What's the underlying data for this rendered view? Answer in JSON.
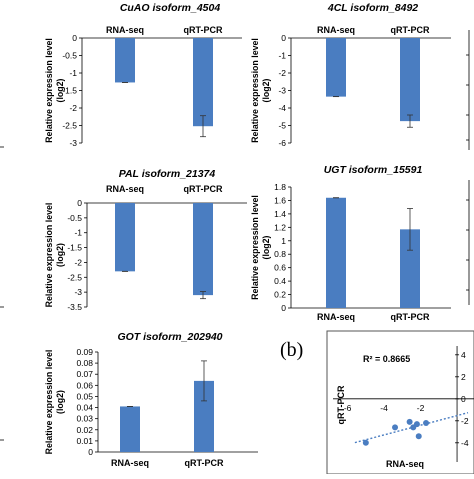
{
  "chart_data": [
    {
      "type": "bar",
      "title": "",
      "xlabel": "",
      "ylabel": "",
      "categories": [],
      "values": [],
      "note": "partially visible panel at left edge, row 1"
    },
    {
      "type": "bar",
      "title": "CuAO isoform_4504",
      "categories": [
        "RNA-seq",
        "qRT-PCR"
      ],
      "values": [
        -1.27,
        -2.52
      ],
      "errors": [
        0.0,
        0.3
      ],
      "ylabel_line1": "Relative expression level",
      "ylabel_line2": "(log2)",
      "ylim": [
        -3,
        0
      ],
      "yticks": [
        0,
        -0.5,
        -1,
        -1.5,
        -2,
        -2.5,
        -3
      ],
      "ytick_labels": [
        "0",
        "-0.5",
        "-1",
        "-1.5",
        "-2",
        "-2.5",
        "-3"
      ],
      "category_position": "top"
    },
    {
      "type": "bar",
      "title": "4CL isoform_8492",
      "categories": [
        "RNA-seq",
        "qRT-PCR"
      ],
      "values": [
        -3.35,
        -4.75
      ],
      "errors": [
        0.0,
        0.35
      ],
      "ylabel_line1": "Relative expression level",
      "ylabel_line2": "(log2)",
      "ylim": [
        -6,
        0
      ],
      "yticks": [
        0,
        -1,
        -2,
        -3,
        -4,
        -5,
        -6
      ],
      "ytick_labels": [
        "0",
        "-1",
        "-2",
        "-3",
        "-4",
        "-5",
        "-6"
      ],
      "category_position": "top"
    },
    {
      "type": "bar",
      "title": "PAL isoform_21374",
      "categories": [
        "RNA-seq",
        "qRT-PCR"
      ],
      "values": [
        -2.3,
        -3.1
      ],
      "errors": [
        0.0,
        0.12
      ],
      "ylabel_line1": "Relative expression level",
      "ylabel_line2": "(log2)",
      "ylim": [
        -3.5,
        0
      ],
      "yticks": [
        0,
        -0.5,
        -1,
        -1.5,
        -2,
        -2.5,
        -3,
        -3.5
      ],
      "ytick_labels": [
        "0",
        "-0.5",
        "-1",
        "-1.5",
        "-2",
        "-2.5",
        "-3",
        "-3.5"
      ],
      "category_position": "top"
    },
    {
      "type": "bar",
      "title": "UGT isoform_15591",
      "categories": [
        "RNA-seq",
        "qRT-PCR"
      ],
      "values": [
        1.64,
        1.17
      ],
      "errors": [
        0.0,
        0.31
      ],
      "ylabel_line1": "Relative expression level",
      "ylabel_line2": "(log2)",
      "ylim": [
        0,
        1.8
      ],
      "yticks": [
        0,
        0.2,
        0.4,
        0.6,
        0.8,
        1,
        1.2,
        1.4,
        1.6,
        1.8
      ],
      "ytick_labels": [
        "0",
        "0.2",
        "0.4",
        "0.6",
        "0.8",
        "1",
        "1.2",
        "1.4",
        "1.6",
        "1.8"
      ],
      "category_position": "bottom"
    },
    {
      "type": "bar",
      "title": "GOT isoform_202940",
      "categories": [
        "RNA-seq",
        "qRT-PCR"
      ],
      "values": [
        0.041,
        0.064
      ],
      "errors": [
        0.0,
        0.018
      ],
      "ylabel_line1": "Relative expression level",
      "ylabel_line2": "(log2)",
      "ylim": [
        0,
        0.09
      ],
      "yticks": [
        0,
        0.01,
        0.02,
        0.03,
        0.04,
        0.05,
        0.06,
        0.07,
        0.08,
        0.09
      ],
      "ytick_labels": [
        "0",
        "0.01",
        "0.02",
        "0.03",
        "0.04",
        "0.05",
        "0.06",
        "0.07",
        "0.08",
        "0.09"
      ],
      "category_position": "bottom"
    },
    {
      "type": "scatter",
      "panel_label": "(b)",
      "annotation": "R² = 0.8665",
      "xlabel": "RNA-seq",
      "ylabel": "qRT-PCR",
      "x_tick_labels": [
        "-6",
        "-4",
        "-2"
      ],
      "y_tick_labels": [
        "4",
        "2",
        "0",
        "-2",
        "-4"
      ],
      "points": [
        {
          "x": -5.0,
          "y": -4.0
        },
        {
          "x": -3.4,
          "y": -2.6
        },
        {
          "x": -2.6,
          "y": -2.1
        },
        {
          "x": -2.4,
          "y": -2.6
        },
        {
          "x": -2.2,
          "y": -2.3
        },
        {
          "x": -2.1,
          "y": -3.4
        },
        {
          "x": -1.7,
          "y": -2.2
        }
      ],
      "trendline": "linear, dotted",
      "xlim": [
        -6.8,
        0.6
      ],
      "ylim": [
        -5.2,
        4.8
      ]
    }
  ]
}
